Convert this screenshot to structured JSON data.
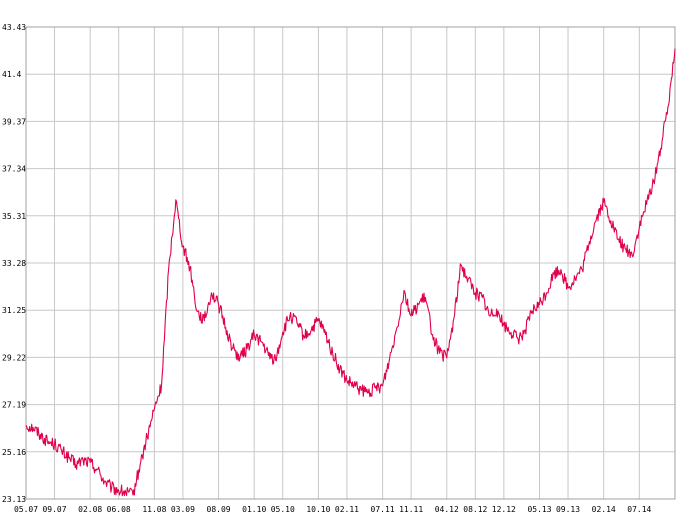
{
  "chart_data": {
    "type": "line",
    "title": "",
    "xlabel": "",
    "ylabel": "",
    "ylim": [
      23.13,
      43.43
    ],
    "xlim": [
      "05.07",
      "12.14"
    ],
    "grid": true,
    "legend": "none",
    "y_ticks": [
      "23.13",
      "25.16",
      "27.19",
      "29.22",
      "31.25",
      "33.28",
      "35.31",
      "37.34",
      "39.37",
      "41.4",
      "43.43"
    ],
    "x_ticks": [
      "05.07",
      "09.07",
      "02.08",
      "06.08",
      "11.08",
      "03.09",
      "08.09",
      "01.10",
      "05.10",
      "10.10",
      "02.11",
      "07.11",
      "11.11",
      "04.12",
      "08.12",
      "12.12",
      "05.13",
      "09.13",
      "02.14",
      "07.14"
    ],
    "series": [
      {
        "color": "#e0004d",
        "x": [
          "05.07",
          "06.07",
          "07.07",
          "08.07",
          "09.07",
          "10.07",
          "11.07",
          "12.07",
          "01.08",
          "02.08",
          "03.08",
          "04.08",
          "05.08",
          "06.08",
          "07.08",
          "08.08",
          "09.08",
          "10.08",
          "11.08",
          "12.08",
          "01.09",
          "02.09",
          "03.09",
          "04.09",
          "05.09",
          "06.09",
          "07.09",
          "08.09",
          "09.09",
          "10.09",
          "11.09",
          "12.09",
          "01.10",
          "02.10",
          "03.10",
          "04.10",
          "05.10",
          "06.10",
          "07.10",
          "08.10",
          "09.10",
          "10.10",
          "11.10",
          "12.10",
          "01.11",
          "02.11",
          "03.11",
          "04.11",
          "05.11",
          "06.11",
          "07.11",
          "08.11",
          "09.11",
          "10.11",
          "11.11",
          "12.11",
          "01.12",
          "02.12",
          "03.12",
          "04.12",
          "05.12",
          "06.12",
          "07.12",
          "08.12",
          "09.12",
          "10.12",
          "11.12",
          "12.12",
          "01.13",
          "02.13",
          "03.13",
          "04.13",
          "05.13",
          "06.13",
          "07.13",
          "08.13",
          "09.13",
          "10.13",
          "11.13",
          "12.13",
          "01.14",
          "02.14",
          "03.14",
          "04.14",
          "05.14",
          "06.14",
          "07.14",
          "08.14",
          "09.14",
          "10.14",
          "11.14",
          "12.14"
        ],
        "y": [
          26.3,
          26.2,
          25.9,
          25.6,
          25.5,
          25.2,
          24.9,
          24.6,
          24.8,
          24.7,
          24.4,
          23.9,
          23.6,
          23.5,
          23.4,
          23.3,
          24.6,
          25.8,
          27.0,
          28.0,
          33.0,
          36.0,
          34.0,
          33.1,
          31.2,
          30.8,
          32.0,
          31.5,
          30.5,
          29.6,
          29.2,
          29.6,
          30.2,
          29.9,
          29.3,
          29.1,
          30.3,
          31.0,
          30.7,
          30.1,
          30.4,
          30.8,
          30.2,
          29.4,
          28.7,
          28.2,
          28.0,
          27.8,
          27.7,
          27.9,
          28.0,
          29.2,
          30.5,
          32.1,
          31.0,
          31.5,
          31.8,
          30.2,
          29.4,
          29.2,
          30.9,
          33.2,
          32.6,
          32.0,
          31.8,
          31.0,
          31.3,
          30.6,
          30.3,
          30.0,
          30.4,
          31.2,
          31.5,
          32.0,
          32.8,
          33.0,
          32.2,
          32.6,
          33.0,
          34.2,
          35.2,
          35.9,
          35.1,
          34.3,
          33.9,
          33.6,
          34.8,
          35.8,
          36.8,
          38.2,
          40.0,
          42.5
        ]
      }
    ]
  }
}
